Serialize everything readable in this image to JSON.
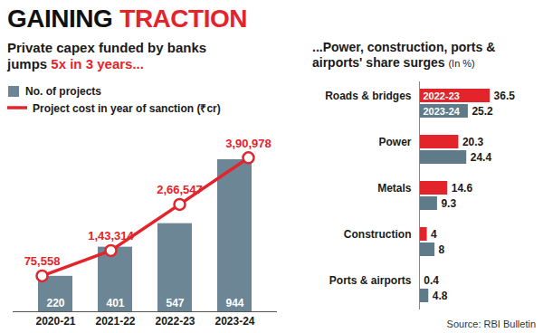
{
  "title": "GAINING TRACTION",
  "source": "Source: RBI Bulletin",
  "chart_data": [
    {
      "type": "bar",
      "title": "Private capex funded by banks jumps 5x in 3 years...",
      "categories": [
        "2020-21",
        "2021-22",
        "2022-23",
        "2023-24"
      ],
      "series": [
        {
          "name": "No. of projects",
          "type": "bar",
          "color": "#6d8695",
          "values": [
            220,
            401,
            547,
            944
          ]
        },
        {
          "name": "Project cost in year of sanction (₹cr)",
          "type": "line",
          "axis": "y2",
          "color": "#e3242b",
          "marker": "circle",
          "values": [
            75558,
            143314,
            266547,
            390978
          ],
          "value_labels": [
            "75,558",
            "1,43,314",
            "2,66,547",
            "3,90,978"
          ]
        }
      ],
      "ylim": [
        0,
        1000
      ],
      "y2lim": [
        -20000,
        410000
      ],
      "data_labels": true,
      "tick_labels": "x",
      "legend": "top-left"
    },
    {
      "type": "bar",
      "orientation": "horizontal",
      "title": "...Power, construction, ports & airports' share surges",
      "subtitle": "(In %)",
      "categories": [
        "Roads & bridges",
        "Power",
        "Metals",
        "Construction",
        "Ports & airports"
      ],
      "series": [
        {
          "name": "2022-23",
          "color": "#e3242b",
          "values": [
            36.5,
            20.3,
            14.6,
            4,
            0.4
          ]
        },
        {
          "name": "2023-24",
          "color": "#5f7a89",
          "values": [
            25.2,
            24.4,
            9.3,
            8,
            4.8
          ]
        }
      ],
      "xlim": [
        0,
        50
      ],
      "data_labels": true,
      "tick_labels": "y",
      "legend": "top-left"
    }
  ]
}
